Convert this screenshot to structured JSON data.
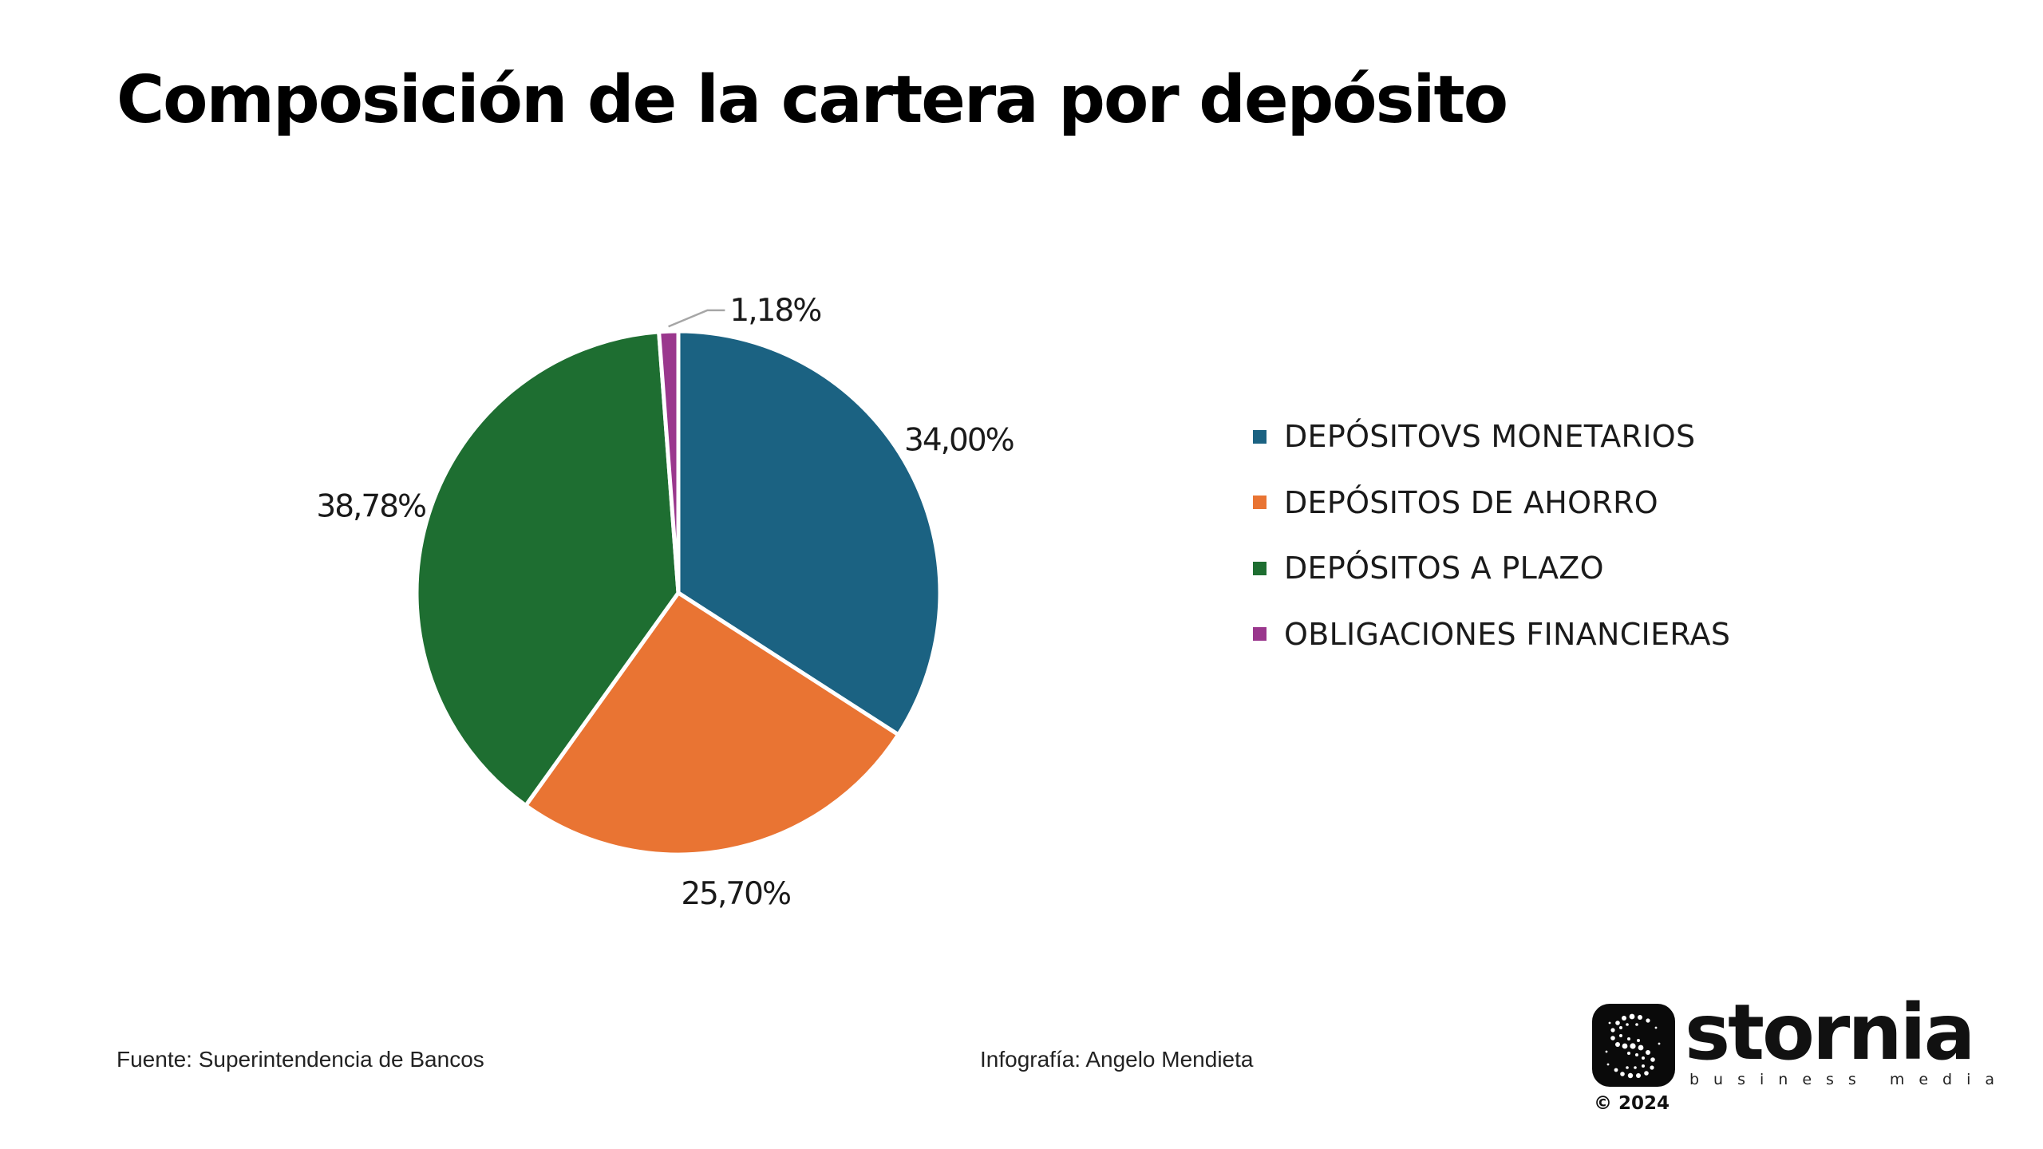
{
  "title": "Composición de la cartera por depósito",
  "colors": {
    "monetarios": "#1b6282",
    "ahorro": "#e97433",
    "plazo": "#1e6e31",
    "obligaciones": "#9a378d"
  },
  "chart_data": {
    "type": "pie",
    "title": "Composición de la cartera por depósito",
    "slices": [
      {
        "name": "DEPÓSITOVS MONETARIOS",
        "value": 34.0,
        "label": "34,00%",
        "color": "#1b6282"
      },
      {
        "name": "DEPÓSITOS DE AHORRO",
        "value": 25.7,
        "label": "25,70%",
        "color": "#e97433"
      },
      {
        "name": "DEPÓSITOS A PLAZO",
        "value": 38.78,
        "label": "38,78%",
        "color": "#1e6e31"
      },
      {
        "name": "OBLIGACIONES FINANCIERAS",
        "value": 1.18,
        "label": "1,18%",
        "color": "#9a378d"
      }
    ],
    "legend_position": "right"
  },
  "footer": {
    "source": "Fuente: Superintendencia de Bancos",
    "credit": "Infografía: Angelo Mendieta"
  },
  "brand": {
    "name": "stornia",
    "tagline": "business media",
    "copyright": "© 2024",
    "icon": "stornia-logo-icon"
  }
}
